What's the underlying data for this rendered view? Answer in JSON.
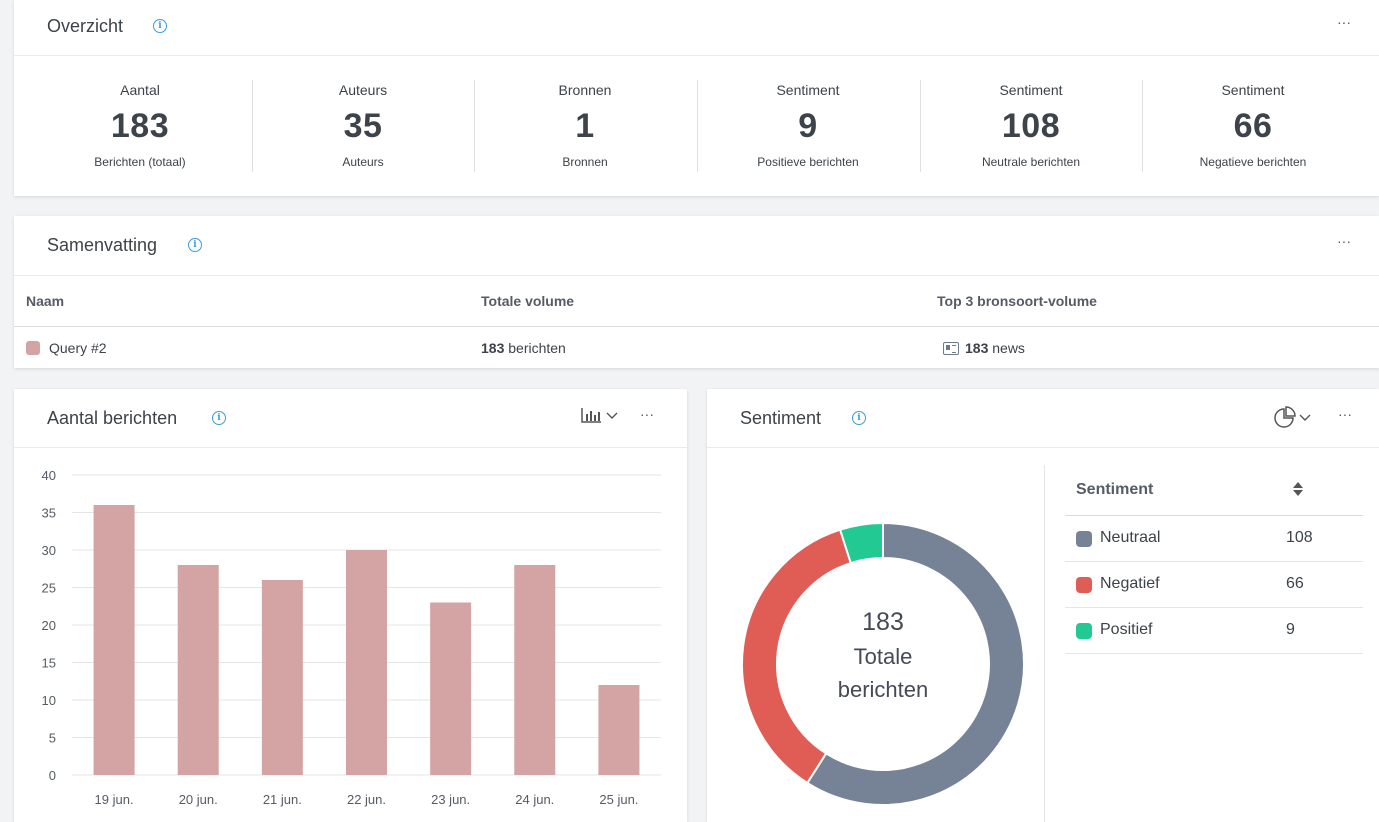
{
  "overzicht": {
    "title": "Overzicht",
    "stats": [
      {
        "label": "Aantal",
        "value": "183",
        "sub": "Berichten (totaal)"
      },
      {
        "label": "Auteurs",
        "value": "35",
        "sub": "Auteurs"
      },
      {
        "label": "Bronnen",
        "value": "1",
        "sub": "Bronnen"
      },
      {
        "label": "Sentiment",
        "value": "9",
        "sub": "Positieve berichten"
      },
      {
        "label": "Sentiment",
        "value": "108",
        "sub": "Neutrale berichten"
      },
      {
        "label": "Sentiment",
        "value": "66",
        "sub": "Negatieve berichten"
      }
    ]
  },
  "samenvatting": {
    "title": "Samenvatting",
    "columns": [
      "Naam",
      "Totale volume",
      "Top 3 bronsoort-volume"
    ],
    "row": {
      "name": "Query #2",
      "volume_count": "183",
      "volume_unit": " berichten",
      "source_count": "183",
      "source_unit": " news"
    },
    "swatch_color": "#d4a3a3"
  },
  "aantal_berichten": {
    "title": "Aantal berichten"
  },
  "sentiment": {
    "title": "Sentiment",
    "table_header": "Sentiment",
    "rows": [
      {
        "name": "Neutraal",
        "value": "108",
        "color": "#768396"
      },
      {
        "name": "Negatief",
        "value": "66",
        "color": "#e05d56"
      },
      {
        "name": "Positief",
        "value": "9",
        "color": "#22c993"
      }
    ],
    "center_value": "183",
    "center_line1": "Totale",
    "center_line2": "berichten"
  },
  "icons": {
    "info": "info-icon",
    "more": "more-icon",
    "bar_chart_switch": "bar-chart-icon",
    "pie_chart_switch": "pie-chart-icon",
    "news": "newspaper-icon",
    "sort": "sort-icon"
  },
  "chart_data": [
    {
      "type": "bar",
      "categories": [
        "19 jun.",
        "20 jun.",
        "21 jun.",
        "22 jun.",
        "23 jun.",
        "24 jun.",
        "25 jun."
      ],
      "values": [
        36,
        28,
        26,
        30,
        23,
        28,
        12
      ],
      "ylim": [
        0,
        40
      ],
      "yticks": [
        0,
        5,
        10,
        15,
        20,
        25,
        30,
        35,
        40
      ],
      "color": "#d4a3a3",
      "grid": true
    },
    {
      "type": "pie",
      "donut": true,
      "labels": [
        "Neutraal",
        "Negatief",
        "Positief"
      ],
      "values": [
        108,
        66,
        9
      ],
      "colors": [
        "#768396",
        "#e05d56",
        "#22c993"
      ]
    }
  ]
}
